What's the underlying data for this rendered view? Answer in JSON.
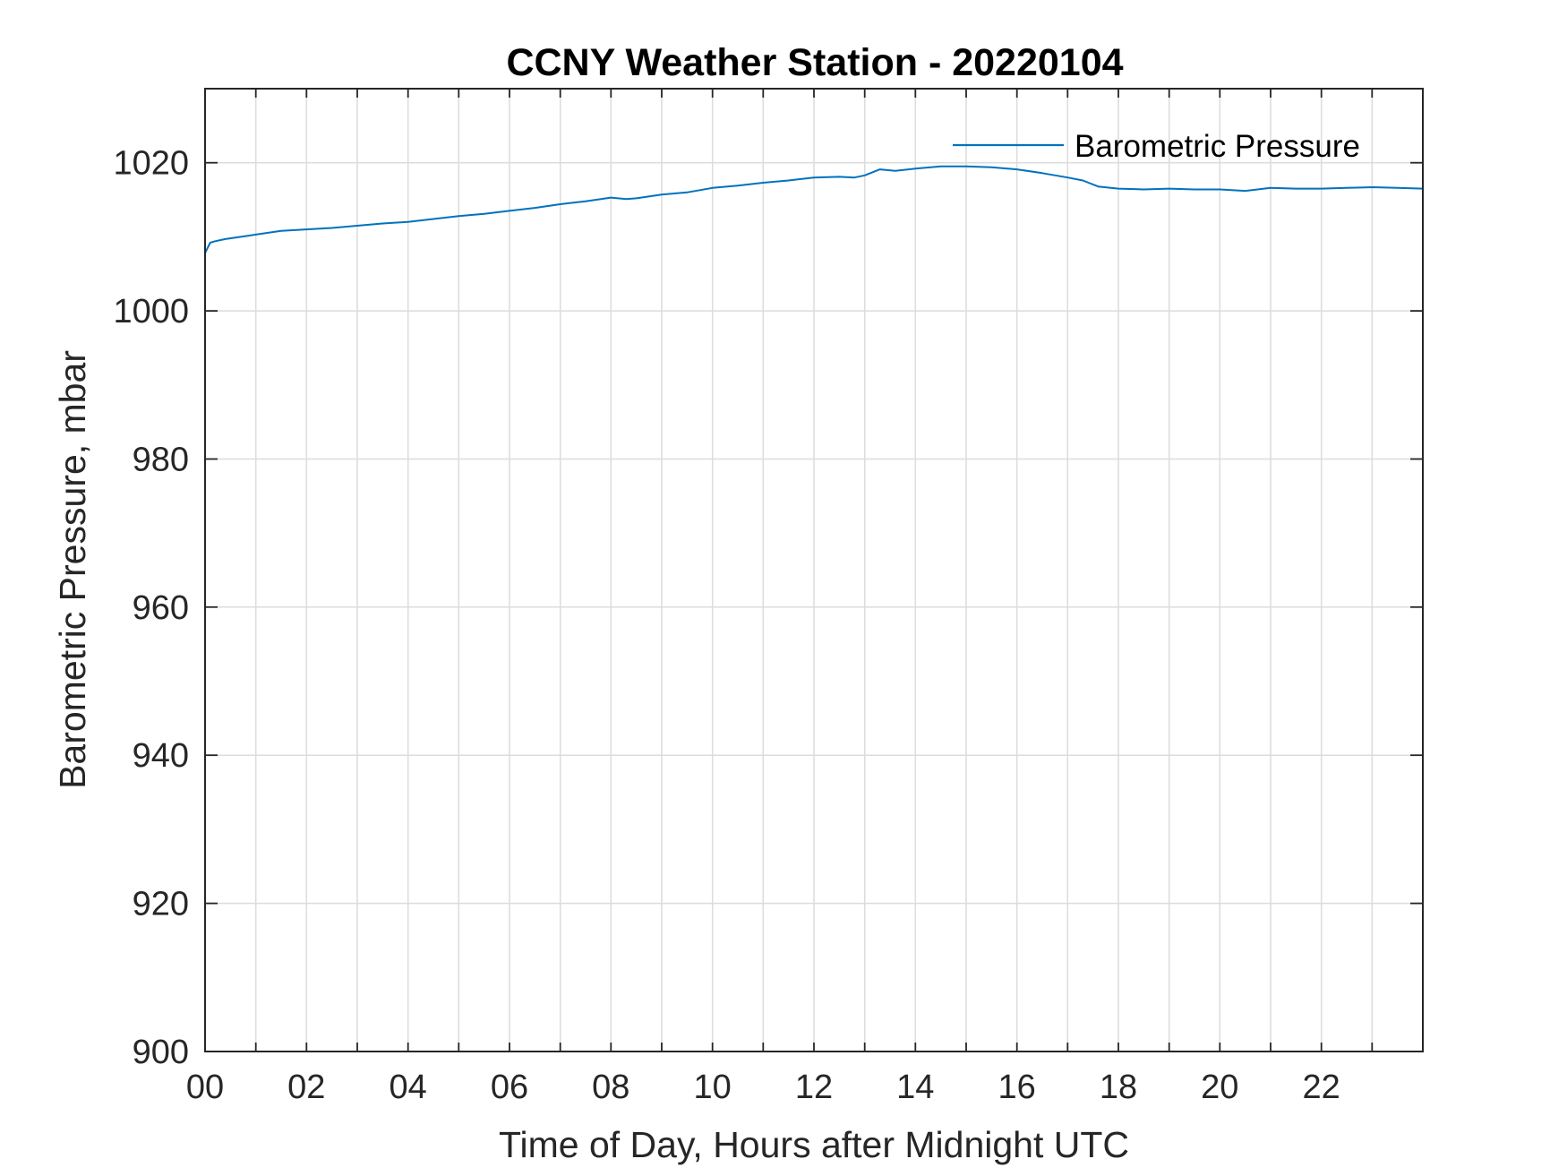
{
  "chart_data": {
    "type": "line",
    "title": "CCNY Weather Station - 20220104",
    "xlabel": "Time of Day, Hours after Midnight UTC",
    "ylabel": "Barometric Pressure, mbar",
    "xlim": [
      0,
      24
    ],
    "ylim": [
      900,
      1030
    ],
    "x_ticks": [
      0,
      2,
      4,
      6,
      8,
      10,
      12,
      14,
      16,
      18,
      20,
      22
    ],
    "x_tick_labels": [
      "00",
      "02",
      "04",
      "06",
      "08",
      "10",
      "12",
      "14",
      "16",
      "18",
      "20",
      "22"
    ],
    "x_minor_grid_step": 1,
    "y_ticks": [
      900,
      920,
      940,
      960,
      980,
      1000,
      1020
    ],
    "y_tick_labels": [
      "900",
      "920",
      "940",
      "960",
      "980",
      "1000",
      "1020"
    ],
    "grid": true,
    "legend_position": "top-right",
    "series": [
      {
        "name": "Barometric Pressure",
        "color": "#0072BD",
        "x": [
          0.0,
          0.1,
          0.2,
          0.4,
          0.6,
          0.8,
          1.0,
          1.5,
          2.0,
          2.5,
          3.0,
          3.5,
          4.0,
          4.5,
          5.0,
          5.5,
          6.0,
          6.5,
          7.0,
          7.5,
          8.0,
          8.3,
          8.5,
          9.0,
          9.5,
          10.0,
          10.5,
          11.0,
          11.5,
          12.0,
          12.5,
          12.8,
          13.0,
          13.3,
          13.6,
          14.0,
          14.5,
          15.0,
          15.5,
          16.0,
          16.5,
          17.0,
          17.3,
          17.6,
          18.0,
          18.5,
          19.0,
          19.5,
          20.0,
          20.5,
          21.0,
          21.5,
          22.0,
          22.5,
          23.0,
          23.5,
          24.0
        ],
        "y": [
          1007.8,
          1009.2,
          1009.4,
          1009.7,
          1009.9,
          1010.1,
          1010.3,
          1010.8,
          1011.0,
          1011.2,
          1011.5,
          1011.8,
          1012.0,
          1012.4,
          1012.8,
          1013.1,
          1013.5,
          1013.9,
          1014.4,
          1014.8,
          1015.3,
          1015.1,
          1015.2,
          1015.7,
          1016.0,
          1016.6,
          1016.9,
          1017.3,
          1017.6,
          1018.0,
          1018.1,
          1018.0,
          1018.3,
          1019.1,
          1018.9,
          1019.2,
          1019.5,
          1019.5,
          1019.4,
          1019.1,
          1018.6,
          1018.0,
          1017.6,
          1016.8,
          1016.5,
          1016.4,
          1016.5,
          1016.4,
          1016.4,
          1016.2,
          1016.6,
          1016.5,
          1016.5,
          1016.6,
          1016.7,
          1016.6,
          1016.5
        ]
      }
    ]
  }
}
